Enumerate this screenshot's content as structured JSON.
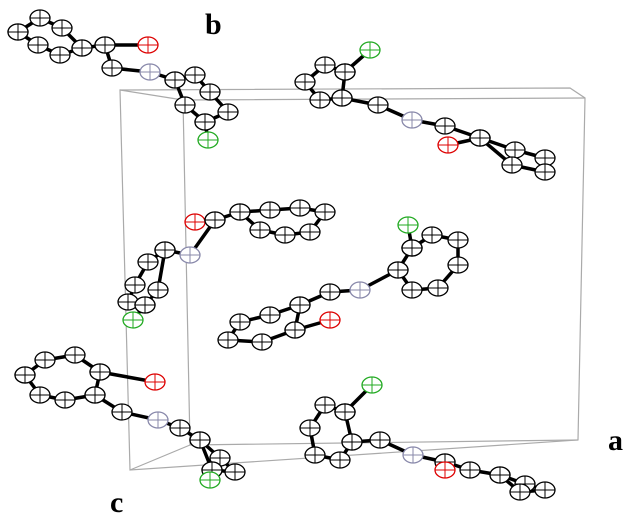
{
  "axis_labels": {
    "b": "b",
    "a": "a",
    "c": "c"
  }
}
